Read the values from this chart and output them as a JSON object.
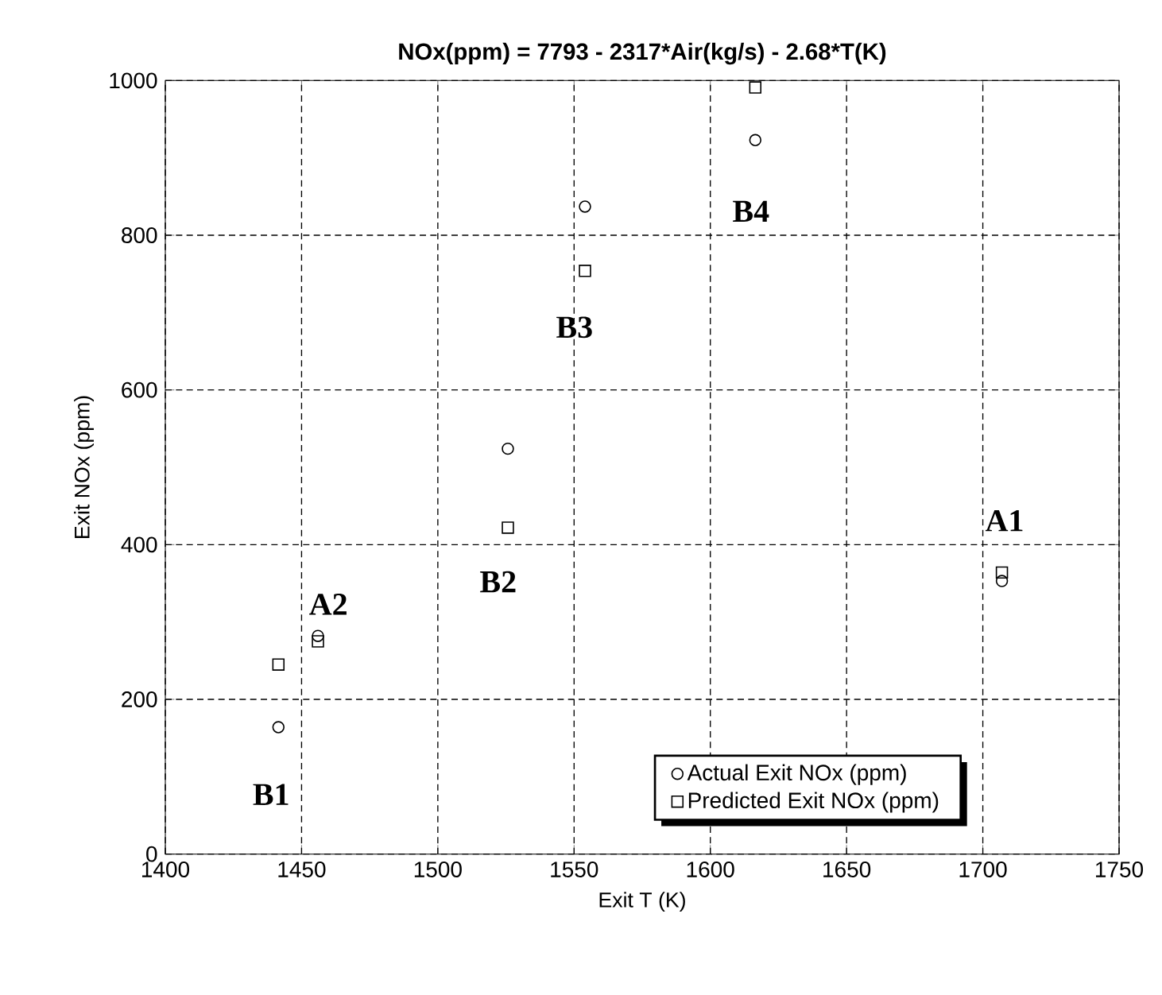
{
  "chart_data": {
    "type": "scatter",
    "title": "NOx(ppm) = 7793 - 2317*Air(kg/s) - 2.68*T(K)",
    "xlabel": "Exit T (K)",
    "ylabel": "Exit NOx (ppm)",
    "xlim": [
      1400,
      1750
    ],
    "xticks": [
      1400,
      1450,
      1500,
      1550,
      1600,
      1650,
      1700,
      1750
    ],
    "ylim": [
      0,
      1000
    ],
    "yticks": [
      0,
      200,
      400,
      600,
      800,
      1000
    ],
    "grid": true,
    "legend": "bottom right",
    "series": [
      {
        "name": "Actual Exit NOx (ppm)",
        "color": "#000000",
        "marker": "circle",
        "x": [
          1441.5,
          1456,
          1525.7,
          1554,
          1616.5,
          1707
        ],
        "values": [
          164,
          282,
          524,
          837,
          923,
          353
        ]
      },
      {
        "name": "Predicted Exit NOx (ppm)",
        "color": "#000000",
        "marker": "square",
        "x": [
          1441.5,
          1456,
          1525.7,
          1554,
          1616.5,
          1707
        ],
        "values": [
          245,
          275,
          422,
          754,
          991,
          364
        ]
      }
    ],
    "annotations": [
      "B1",
      "A2",
      "B2",
      "B3",
      "B4",
      "A1"
    ]
  }
}
